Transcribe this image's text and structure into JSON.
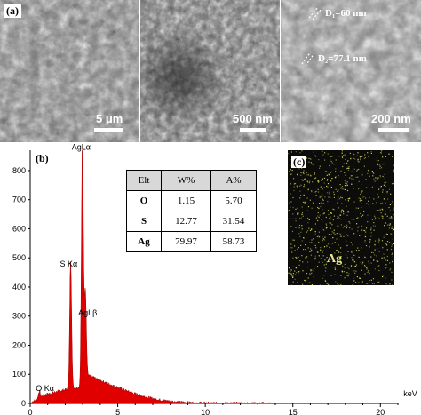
{
  "panel_a": {
    "tag": "(a)",
    "images": [
      {
        "scale_label": "5 μm"
      },
      {
        "scale_label": "500 nm"
      },
      {
        "scale_label": "200 nm",
        "d1_label": "D₁=60 nm",
        "d2_label": "D₂=77.1 nm"
      }
    ]
  },
  "panel_b": {
    "tag": "(b)"
  },
  "panel_c": {
    "tag": "(c)",
    "element_label": "Ag"
  },
  "table": {
    "headers": [
      "Elt",
      "W%",
      "A%"
    ],
    "rows": [
      {
        "elt": "O",
        "w": "1.15",
        "a": "5.70"
      },
      {
        "elt": "S",
        "w": "12.77",
        "a": "31.54"
      },
      {
        "elt": "Ag",
        "w": "79.97",
        "a": "58.73"
      }
    ]
  },
  "colors": {
    "spectrum_fill": "#e00000",
    "map_dots": "#d8d860",
    "map_bg": "#0c0c0a"
  },
  "chart_data": {
    "type": "area",
    "title": "",
    "xlabel": "keV",
    "ylabel": "",
    "xlim": [
      0,
      21
    ],
    "ylim": [
      0,
      870
    ],
    "x_ticks": [
      0,
      5,
      10,
      15,
      20
    ],
    "y_ticks": [
      0,
      100,
      200,
      300,
      400,
      500,
      600,
      700,
      800
    ],
    "grid": false,
    "peaks": [
      {
        "label": "O Kα",
        "x": 0.52,
        "y": 25
      },
      {
        "label": "S Kα",
        "x": 2.31,
        "y": 440
      },
      {
        "label": "AgLα",
        "x": 2.98,
        "y": 860
      },
      {
        "label": "AgLβ",
        "x": 3.15,
        "y": 290
      }
    ],
    "annotations": [
      "AgLα",
      "S Kα",
      "AgLβ",
      "O Kα"
    ]
  }
}
